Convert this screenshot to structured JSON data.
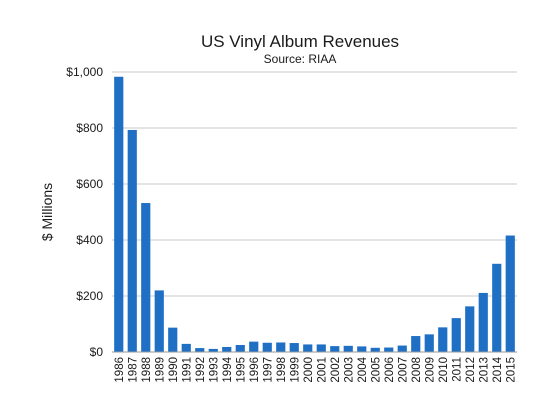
{
  "chart_data": {
    "type": "bar",
    "title": "US Vinyl Album Revenues",
    "subtitle": "Source: RIAA",
    "xlabel": "",
    "ylabel": "$ Millions",
    "ylim": [
      0,
      1000
    ],
    "yticks": [
      0,
      200,
      400,
      600,
      800,
      1000
    ],
    "ytick_labels": [
      "$0",
      "$200",
      "$400",
      "$600",
      "$800",
      "$1,000"
    ],
    "grid": true,
    "legend": "none",
    "bar_color": "#1f6fc5",
    "categories": [
      "1986",
      "1987",
      "1988",
      "1989",
      "1990",
      "1991",
      "1992",
      "1993",
      "1994",
      "1995",
      "1996",
      "1997",
      "1998",
      "1999",
      "2000",
      "2001",
      "2002",
      "2003",
      "2004",
      "2005",
      "2006",
      "2007",
      "2008",
      "2009",
      "2010",
      "2011",
      "2012",
      "2013",
      "2014",
      "2015"
    ],
    "values": [
      983,
      793,
      532,
      220,
      87,
      29,
      14,
      11,
      18,
      25,
      37,
      33,
      34,
      32,
      27,
      27,
      21,
      22,
      20,
      15,
      16,
      23,
      57,
      63,
      88,
      121,
      163,
      211,
      315,
      416
    ]
  }
}
